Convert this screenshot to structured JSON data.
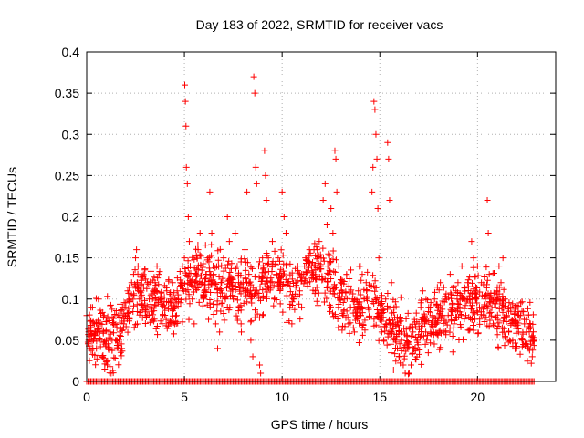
{
  "chart_data": {
    "type": "scatter",
    "title": "Day 183 of 2022, SRMTID for receiver vacs",
    "xlabel": "GPS time / hours",
    "ylabel": "SRMTID / TECUs",
    "xlim": [
      0,
      24
    ],
    "ylim": [
      0,
      0.4
    ],
    "xticks": [
      0,
      5,
      10,
      15,
      20
    ],
    "xtick_labels": [
      "0",
      "5",
      "10",
      "15",
      "20"
    ],
    "yticks": [
      0,
      0.05,
      0.1,
      0.15,
      0.2,
      0.25,
      0.3,
      0.35,
      0.4
    ],
    "ytick_labels": [
      "0",
      "0.05",
      "0.1",
      "0.15",
      "0.2",
      "0.25",
      "0.3",
      "0.35",
      "0.4"
    ],
    "grid": true,
    "marker": "+",
    "color": "#ff0000",
    "series": [
      {
        "name": "SRMTID",
        "points": [
          [
            0.0,
            0.08
          ],
          [
            0.1,
            0.05
          ],
          [
            0.15,
            0.04
          ],
          [
            0.2,
            0.06
          ],
          [
            0.3,
            0.09
          ],
          [
            0.35,
            0.05
          ],
          [
            0.4,
            0.07
          ],
          [
            0.5,
            0.04
          ],
          [
            0.55,
            0.06
          ],
          [
            0.6,
            0.1
          ],
          [
            0.7,
            0.07
          ],
          [
            0.8,
            0.03
          ],
          [
            0.85,
            0.06
          ],
          [
            0.9,
            0.08
          ],
          [
            1.0,
            0.05
          ],
          [
            1.05,
            0.02
          ],
          [
            1.1,
            0.04
          ],
          [
            1.2,
            0.06
          ],
          [
            1.25,
            0.01
          ],
          [
            1.3,
            0.05
          ],
          [
            1.4,
            0.07
          ],
          [
            1.5,
            0.05
          ],
          [
            1.6,
            0.08
          ],
          [
            1.7,
            0.06
          ],
          [
            1.8,
            0.04
          ],
          [
            1.9,
            0.07
          ],
          [
            2.0,
            0.09
          ],
          [
            2.1,
            0.11
          ],
          [
            2.2,
            0.1
          ],
          [
            2.3,
            0.12
          ],
          [
            2.4,
            0.13
          ],
          [
            2.5,
            0.15
          ],
          [
            2.55,
            0.16
          ],
          [
            2.6,
            0.12
          ],
          [
            2.7,
            0.1
          ],
          [
            2.8,
            0.11
          ],
          [
            2.9,
            0.09
          ],
          [
            3.0,
            0.08
          ],
          [
            3.1,
            0.12
          ],
          [
            3.2,
            0.1
          ],
          [
            3.3,
            0.09
          ],
          [
            3.4,
            0.11
          ],
          [
            3.5,
            0.12
          ],
          [
            3.6,
            0.14
          ],
          [
            3.7,
            0.13
          ],
          [
            3.8,
            0.1
          ],
          [
            3.9,
            0.08
          ],
          [
            4.0,
            0.09
          ],
          [
            4.1,
            0.11
          ],
          [
            4.2,
            0.07
          ],
          [
            4.3,
            0.1
          ],
          [
            4.4,
            0.12
          ],
          [
            4.5,
            0.09
          ],
          [
            4.6,
            0.08
          ],
          [
            4.7,
            0.1
          ],
          [
            4.8,
            0.12
          ],
          [
            4.9,
            0.14
          ],
          [
            5.0,
            0.15
          ],
          [
            5.02,
            0.36
          ],
          [
            5.05,
            0.34
          ],
          [
            5.08,
            0.31
          ],
          [
            5.1,
            0.26
          ],
          [
            5.15,
            0.24
          ],
          [
            5.2,
            0.2
          ],
          [
            5.25,
            0.17
          ],
          [
            5.3,
            0.14
          ],
          [
            5.4,
            0.1
          ],
          [
            5.5,
            0.07
          ],
          [
            5.6,
            0.13
          ],
          [
            5.7,
            0.16
          ],
          [
            5.8,
            0.18
          ],
          [
            5.9,
            0.12
          ],
          [
            6.0,
            0.1
          ],
          [
            6.1,
            0.13
          ],
          [
            6.2,
            0.15
          ],
          [
            6.3,
            0.23
          ],
          [
            6.4,
            0.18
          ],
          [
            6.5,
            0.13
          ],
          [
            6.6,
            0.07
          ],
          [
            6.7,
            0.04
          ],
          [
            6.8,
            0.06
          ],
          [
            6.9,
            0.12
          ],
          [
            7.0,
            0.15
          ],
          [
            7.1,
            0.1
          ],
          [
            7.2,
            0.2
          ],
          [
            7.3,
            0.17
          ],
          [
            7.4,
            0.12
          ],
          [
            7.5,
            0.1
          ],
          [
            7.6,
            0.18
          ],
          [
            7.7,
            0.14
          ],
          [
            7.8,
            0.09
          ],
          [
            7.9,
            0.07
          ],
          [
            8.0,
            0.12
          ],
          [
            8.1,
            0.16
          ],
          [
            8.2,
            0.23
          ],
          [
            8.3,
            0.13
          ],
          [
            8.4,
            0.05
          ],
          [
            8.5,
            0.03
          ],
          [
            8.55,
            0.37
          ],
          [
            8.6,
            0.35
          ],
          [
            8.65,
            0.26
          ],
          [
            8.7,
            0.24
          ],
          [
            8.8,
            0.14
          ],
          [
            8.85,
            0.02
          ],
          [
            8.9,
            0.01
          ],
          [
            9.0,
            0.08
          ],
          [
            9.1,
            0.28
          ],
          [
            9.15,
            0.25
          ],
          [
            9.2,
            0.22
          ],
          [
            9.3,
            0.15
          ],
          [
            9.4,
            0.12
          ],
          [
            9.5,
            0.17
          ],
          [
            9.6,
            0.1
          ],
          [
            9.7,
            0.13
          ],
          [
            9.8,
            0.15
          ],
          [
            9.9,
            0.12
          ],
          [
            10.0,
            0.23
          ],
          [
            10.1,
            0.2
          ],
          [
            10.2,
            0.18
          ],
          [
            10.3,
            0.12
          ],
          [
            10.4,
            0.09
          ],
          [
            10.5,
            0.07
          ],
          [
            10.6,
            0.1
          ],
          [
            10.7,
            0.12
          ],
          [
            10.8,
            0.14
          ],
          [
            10.9,
            0.11
          ],
          [
            11.0,
            0.09
          ],
          [
            11.1,
            0.13
          ],
          [
            11.2,
            0.15
          ],
          [
            11.3,
            0.12
          ],
          [
            11.4,
            0.16
          ],
          [
            11.5,
            0.14
          ],
          [
            11.6,
            0.13
          ],
          [
            11.7,
            0.11
          ],
          [
            11.8,
            0.16
          ],
          [
            11.9,
            0.17
          ],
          [
            12.0,
            0.15
          ],
          [
            12.1,
            0.22
          ],
          [
            12.2,
            0.24
          ],
          [
            12.3,
            0.19
          ],
          [
            12.4,
            0.13
          ],
          [
            12.5,
            0.21
          ],
          [
            12.6,
            0.18
          ],
          [
            12.7,
            0.28
          ],
          [
            12.75,
            0.27
          ],
          [
            12.8,
            0.23
          ],
          [
            12.9,
            0.14
          ],
          [
            13.0,
            0.12
          ],
          [
            13.1,
            0.08
          ],
          [
            13.2,
            0.1
          ],
          [
            13.3,
            0.13
          ],
          [
            13.4,
            0.07
          ],
          [
            13.5,
            0.09
          ],
          [
            13.6,
            0.1
          ],
          [
            13.7,
            0.06
          ],
          [
            13.8,
            0.08
          ],
          [
            13.9,
            0.11
          ],
          [
            14.0,
            0.14
          ],
          [
            14.1,
            0.13
          ],
          [
            14.2,
            0.1
          ],
          [
            14.3,
            0.12
          ],
          [
            14.4,
            0.09
          ],
          [
            14.5,
            0.11
          ],
          [
            14.6,
            0.23
          ],
          [
            14.65,
            0.26
          ],
          [
            14.7,
            0.34
          ],
          [
            14.75,
            0.33
          ],
          [
            14.8,
            0.3
          ],
          [
            14.85,
            0.27
          ],
          [
            14.9,
            0.21
          ],
          [
            14.95,
            0.15
          ],
          [
            15.0,
            0.08
          ],
          [
            15.1,
            0.06
          ],
          [
            15.2,
            0.05
          ],
          [
            15.3,
            0.1
          ],
          [
            15.4,
            0.29
          ],
          [
            15.45,
            0.27
          ],
          [
            15.5,
            0.22
          ],
          [
            15.6,
            0.12
          ],
          [
            15.7,
            0.07
          ],
          [
            15.8,
            0.05
          ],
          [
            15.9,
            0.04
          ],
          [
            16.0,
            0.03
          ],
          [
            16.1,
            0.05
          ],
          [
            16.2,
            0.02
          ],
          [
            16.3,
            0.01
          ],
          [
            16.4,
            0.04
          ],
          [
            16.5,
            0.01
          ],
          [
            16.6,
            0.02
          ],
          [
            16.7,
            0.06
          ],
          [
            16.8,
            0.04
          ],
          [
            16.9,
            0.05
          ],
          [
            17.0,
            0.07
          ],
          [
            17.1,
            0.09
          ],
          [
            17.2,
            0.11
          ],
          [
            17.3,
            0.07
          ],
          [
            17.4,
            0.05
          ],
          [
            17.5,
            0.09
          ],
          [
            17.6,
            0.06
          ],
          [
            17.7,
            0.08
          ],
          [
            17.8,
            0.1
          ],
          [
            17.9,
            0.07
          ],
          [
            18.0,
            0.09
          ],
          [
            18.1,
            0.12
          ],
          [
            18.2,
            0.08
          ],
          [
            18.3,
            0.06
          ],
          [
            18.4,
            0.1
          ],
          [
            18.5,
            0.08
          ],
          [
            18.6,
            0.13
          ],
          [
            18.7,
            0.09
          ],
          [
            18.8,
            0.07
          ],
          [
            18.9,
            0.11
          ],
          [
            19.0,
            0.12
          ],
          [
            19.1,
            0.09
          ],
          [
            19.2,
            0.14
          ],
          [
            19.3,
            0.1
          ],
          [
            19.4,
            0.08
          ],
          [
            19.5,
            0.12
          ],
          [
            19.6,
            0.1
          ],
          [
            19.7,
            0.17
          ],
          [
            19.8,
            0.15
          ],
          [
            19.9,
            0.11
          ],
          [
            20.0,
            0.14
          ],
          [
            20.1,
            0.09
          ],
          [
            20.2,
            0.12
          ],
          [
            20.3,
            0.08
          ],
          [
            20.4,
            0.1
          ],
          [
            20.5,
            0.22
          ],
          [
            20.55,
            0.18
          ],
          [
            20.6,
            0.13
          ],
          [
            20.7,
            0.1
          ],
          [
            20.8,
            0.07
          ],
          [
            20.9,
            0.09
          ],
          [
            21.0,
            0.11
          ],
          [
            21.1,
            0.14
          ],
          [
            21.2,
            0.12
          ],
          [
            21.3,
            0.15
          ],
          [
            21.4,
            0.1
          ],
          [
            21.5,
            0.08
          ],
          [
            21.6,
            0.06
          ],
          [
            21.7,
            0.09
          ],
          [
            21.8,
            0.05
          ],
          [
            21.9,
            0.07
          ],
          [
            22.0,
            0.04
          ],
          [
            22.1,
            0.06
          ],
          [
            22.2,
            0.08
          ],
          [
            22.3,
            0.05
          ],
          [
            22.4,
            0.07
          ],
          [
            22.5,
            0.06
          ],
          [
            22.6,
            0.04
          ],
          [
            22.7,
            0.07
          ],
          [
            22.8,
            0.03
          ],
          [
            22.9,
            0.05
          ]
        ],
        "background_points": {
          "generator": "band",
          "count": 1400,
          "band_centers": [
            [
              0,
              0.06
            ],
            [
              1.5,
              0.05
            ],
            [
              2.5,
              0.11
            ],
            [
              3.5,
              0.1
            ],
            [
              4.5,
              0.09
            ],
            [
              5.5,
              0.13
            ],
            [
              6.5,
              0.12
            ],
            [
              7.5,
              0.11
            ],
            [
              8.5,
              0.11
            ],
            [
              9.5,
              0.13
            ],
            [
              10.5,
              0.11
            ],
            [
              11.5,
              0.14
            ],
            [
              12.5,
              0.12
            ],
            [
              13.5,
              0.09
            ],
            [
              14.5,
              0.1
            ],
            [
              15.5,
              0.07
            ],
            [
              16.5,
              0.04
            ],
            [
              17.5,
              0.07
            ],
            [
              18.5,
              0.08
            ],
            [
              19.5,
              0.09
            ],
            [
              20.5,
              0.1
            ],
            [
              21.5,
              0.08
            ],
            [
              22.5,
              0.06
            ],
            [
              22.9,
              0.06
            ]
          ],
          "spread": 0.035
        },
        "zero_points": {
          "x_start": 0.0,
          "x_end": 22.95,
          "step": 0.07,
          "y": 0
        }
      }
    ]
  }
}
